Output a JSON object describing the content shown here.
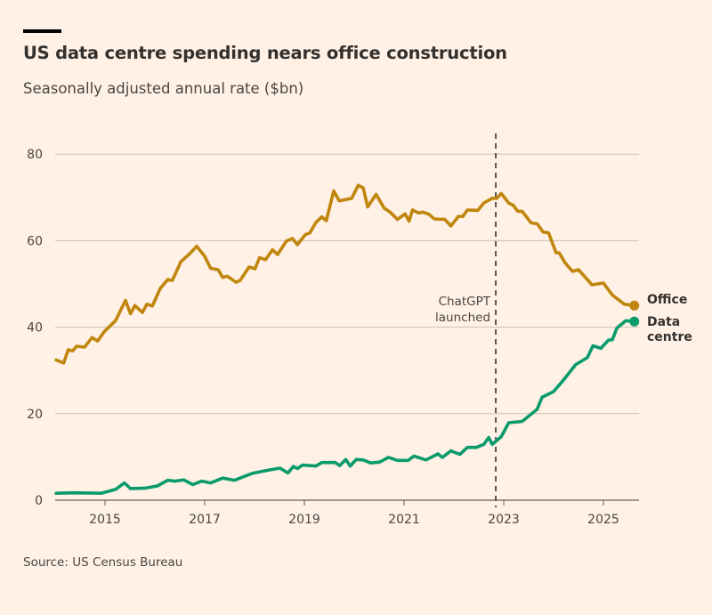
{
  "header": {
    "title": "US data centre spending nears office construction",
    "subtitle": "Seasonally adjusted annual rate ($bn)"
  },
  "footer": {
    "source": "Source: US Census Bureau"
  },
  "chart_data": {
    "type": "line",
    "title": "US data centre spending nears office construction",
    "subtitle": "Seasonally adjusted annual rate ($bn)",
    "xlabel": "",
    "ylabel": "",
    "xlim": [
      2014.0,
      2025.7
    ],
    "ylim": [
      0,
      80
    ],
    "x_ticks": [
      2015,
      2017,
      2019,
      2021,
      2023,
      2025
    ],
    "y_ticks": [
      0,
      20,
      40,
      60,
      80
    ],
    "grid": "horizontal",
    "legend": "direct labels at line ends (right)",
    "annotation": {
      "x": 2022.84,
      "label_lines": [
        "ChatGPT",
        "launched"
      ],
      "style": "dashed vertical line"
    },
    "series": [
      {
        "name": "Office",
        "label_lines": [
          "Office"
        ],
        "color": "#C0860E",
        "points": [
          [
            2014.02,
            32.4
          ],
          [
            2014.17,
            31.7
          ],
          [
            2014.26,
            34.8
          ],
          [
            2014.35,
            34.5
          ],
          [
            2014.43,
            35.6
          ],
          [
            2014.59,
            35.4
          ],
          [
            2014.74,
            37.6
          ],
          [
            2014.85,
            36.8
          ],
          [
            2014.98,
            38.9
          ],
          [
            2015.21,
            41.5
          ],
          [
            2015.41,
            46.2
          ],
          [
            2015.51,
            43.1
          ],
          [
            2015.6,
            45
          ],
          [
            2015.75,
            43.4
          ],
          [
            2015.84,
            45.3
          ],
          [
            2015.95,
            44.9
          ],
          [
            2016.11,
            49
          ],
          [
            2016.26,
            51
          ],
          [
            2016.35,
            50.8
          ],
          [
            2016.52,
            55.1
          ],
          [
            2016.7,
            57
          ],
          [
            2016.84,
            58.7
          ],
          [
            2017.0,
            56.4
          ],
          [
            2017.12,
            53.6
          ],
          [
            2017.27,
            53.3
          ],
          [
            2017.36,
            51.5
          ],
          [
            2017.45,
            51.8
          ],
          [
            2017.63,
            50.4
          ],
          [
            2017.71,
            50.8
          ],
          [
            2017.89,
            53.9
          ],
          [
            2018.01,
            53.5
          ],
          [
            2018.1,
            56.1
          ],
          [
            2018.22,
            55.6
          ],
          [
            2018.36,
            57.9
          ],
          [
            2018.46,
            56.8
          ],
          [
            2018.64,
            59.9
          ],
          [
            2018.76,
            60.5
          ],
          [
            2018.86,
            59.1
          ],
          [
            2019.02,
            61.4
          ],
          [
            2019.11,
            61.8
          ],
          [
            2019.23,
            64.2
          ],
          [
            2019.35,
            65.5
          ],
          [
            2019.44,
            64.6
          ],
          [
            2019.59,
            71.5
          ],
          [
            2019.7,
            69.2
          ],
          [
            2019.95,
            69.8
          ],
          [
            2020.08,
            72.8
          ],
          [
            2020.18,
            72.2
          ],
          [
            2020.27,
            67.8
          ],
          [
            2020.44,
            70.7
          ],
          [
            2020.6,
            67.5
          ],
          [
            2020.72,
            66.6
          ],
          [
            2020.87,
            64.9
          ],
          [
            2021.02,
            66.2
          ],
          [
            2021.1,
            64.5
          ],
          [
            2021.17,
            67.1
          ],
          [
            2021.29,
            66.4
          ],
          [
            2021.38,
            66.6
          ],
          [
            2021.5,
            66.1
          ],
          [
            2021.61,
            65
          ],
          [
            2021.82,
            64.9
          ],
          [
            2021.94,
            63.4
          ],
          [
            2022.09,
            65.6
          ],
          [
            2022.18,
            65.6
          ],
          [
            2022.27,
            67.1
          ],
          [
            2022.48,
            67
          ],
          [
            2022.6,
            68.7
          ],
          [
            2022.77,
            69.8
          ],
          [
            2022.86,
            69.8
          ],
          [
            2022.95,
            70.9
          ],
          [
            2023.1,
            68.7
          ],
          [
            2023.19,
            68.2
          ],
          [
            2023.28,
            66.8
          ],
          [
            2023.37,
            66.8
          ],
          [
            2023.55,
            64.1
          ],
          [
            2023.67,
            63.9
          ],
          [
            2023.79,
            62
          ],
          [
            2023.9,
            61.8
          ],
          [
            2024.05,
            57.2
          ],
          [
            2024.11,
            57.2
          ],
          [
            2024.23,
            54.9
          ],
          [
            2024.38,
            52.9
          ],
          [
            2024.5,
            53.3
          ],
          [
            2024.77,
            49.8
          ],
          [
            2025.0,
            50.2
          ],
          [
            2025.18,
            47.4
          ],
          [
            2025.42,
            45.3
          ],
          [
            2025.62,
            45
          ]
        ]
      },
      {
        "name": "Data centre",
        "label_lines": [
          "Data",
          "centre"
        ],
        "color": "#0A9B6C",
        "points": [
          [
            2014.02,
            1.6
          ],
          [
            2014.38,
            1.7
          ],
          [
            2014.92,
            1.6
          ],
          [
            2015.21,
            2.5
          ],
          [
            2015.39,
            4
          ],
          [
            2015.51,
            2.7
          ],
          [
            2015.81,
            2.8
          ],
          [
            2016.05,
            3.3
          ],
          [
            2016.26,
            4.6
          ],
          [
            2016.4,
            4.4
          ],
          [
            2016.58,
            4.7
          ],
          [
            2016.76,
            3.6
          ],
          [
            2016.94,
            4.4
          ],
          [
            2017.12,
            4.0
          ],
          [
            2017.36,
            5.1
          ],
          [
            2017.6,
            4.6
          ],
          [
            2017.95,
            6.2
          ],
          [
            2018.3,
            7.0
          ],
          [
            2018.51,
            7.4
          ],
          [
            2018.67,
            6.3
          ],
          [
            2018.78,
            7.8
          ],
          [
            2018.86,
            7.3
          ],
          [
            2018.96,
            8.1
          ],
          [
            2019.23,
            7.9
          ],
          [
            2019.35,
            8.7
          ],
          [
            2019.62,
            8.7
          ],
          [
            2019.71,
            8.0
          ],
          [
            2019.83,
            9.4
          ],
          [
            2019.92,
            7.9
          ],
          [
            2020.04,
            9.4
          ],
          [
            2020.18,
            9.3
          ],
          [
            2020.33,
            8.6
          ],
          [
            2020.51,
            8.8
          ],
          [
            2020.69,
            9.9
          ],
          [
            2020.87,
            9.2
          ],
          [
            2021.08,
            9.2
          ],
          [
            2021.2,
            10.2
          ],
          [
            2021.44,
            9.3
          ],
          [
            2021.68,
            10.7
          ],
          [
            2021.77,
            9.9
          ],
          [
            2021.94,
            11.4
          ],
          [
            2022.12,
            10.6
          ],
          [
            2022.27,
            12.2
          ],
          [
            2022.45,
            12.2
          ],
          [
            2022.6,
            12.9
          ],
          [
            2022.7,
            14.5
          ],
          [
            2022.77,
            12.9
          ],
          [
            2022.95,
            14.7
          ],
          [
            2023.1,
            17.9
          ],
          [
            2023.37,
            18.2
          ],
          [
            2023.67,
            21
          ],
          [
            2023.77,
            23.8
          ],
          [
            2024.0,
            25.1
          ],
          [
            2024.2,
            27.8
          ],
          [
            2024.44,
            31.3
          ],
          [
            2024.68,
            33
          ],
          [
            2024.79,
            35.7
          ],
          [
            2024.95,
            35.1
          ],
          [
            2025.1,
            37
          ],
          [
            2025.18,
            37.1
          ],
          [
            2025.27,
            39.8
          ],
          [
            2025.45,
            41.5
          ],
          [
            2025.62,
            41.3
          ]
        ]
      }
    ]
  }
}
